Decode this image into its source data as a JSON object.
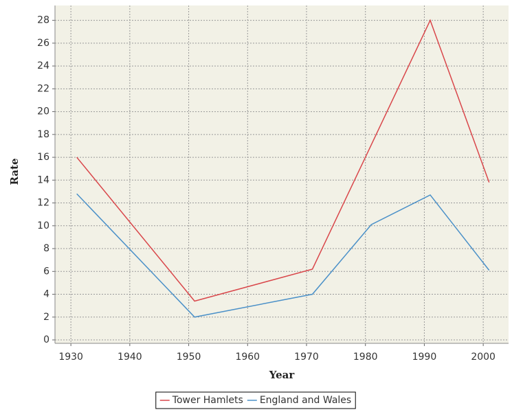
{
  "chart_data": {
    "type": "line",
    "x_label": "Year",
    "y_label": "Rate",
    "x": [
      1931,
      1951,
      1971,
      1981,
      1991,
      2001
    ],
    "series": [
      {
        "name": "Tower Hamlets",
        "color": "#d9464a",
        "values": [
          16.0,
          3.4,
          6.2,
          17.1,
          28.0,
          13.8
        ]
      },
      {
        "name": "England and Wales",
        "color": "#4a90c8",
        "values": [
          12.8,
          2.0,
          4.0,
          10.1,
          12.7,
          6.1
        ]
      }
    ],
    "xlim": [
      1927.3,
      2004.3
    ],
    "xticks": [
      1930,
      1940,
      1950,
      1960,
      1970,
      1980,
      1990,
      2000
    ],
    "ylim": [
      -0.3,
      29.3
    ],
    "yticks": [
      0,
      2,
      4,
      6,
      8,
      10,
      12,
      14,
      16,
      18,
      20,
      22,
      24,
      26,
      28
    ],
    "grid": true,
    "legend": "bottom"
  }
}
